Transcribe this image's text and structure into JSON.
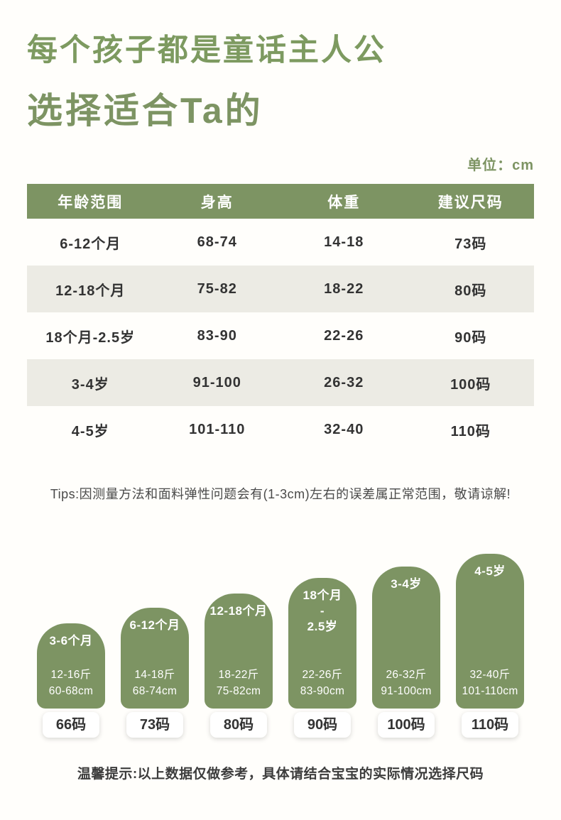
{
  "header": {
    "slogan": "每个孩子都是童话主人公",
    "subtitle": "选择适合Ta的",
    "unit": "单位：cm"
  },
  "table": {
    "headers": [
      "年龄范围",
      "身高",
      "体重",
      "建议尺码"
    ],
    "rows": [
      [
        "6-12个月",
        "68-74",
        "14-18",
        "73码"
      ],
      [
        "12-18个月",
        "75-82",
        "18-22",
        "80码"
      ],
      [
        "18个月-2.5岁",
        "83-90",
        "22-26",
        "90码"
      ],
      [
        "3-4岁",
        "91-100",
        "26-32",
        "100码"
      ],
      [
        "4-5岁",
        "101-110",
        "32-40",
        "110码"
      ]
    ]
  },
  "tips": "Tips:因测量方法和面料弹性问题会有(1-3cm)左右的误差属正常范围，敬请谅解!",
  "chart_data": {
    "type": "bar",
    "title": "",
    "categories": [
      "3-6个月",
      "6-12个月",
      "12-18个月",
      "18个月-2.5岁",
      "3-4岁",
      "4-5岁"
    ],
    "series": [
      {
        "name": "体重(斤)",
        "values": [
          "12-16",
          "14-18",
          "18-22",
          "22-26",
          "26-32",
          "32-40"
        ]
      },
      {
        "name": "身高(cm)",
        "values": [
          "60-68",
          "68-74",
          "75-82",
          "83-90",
          "91-100",
          "101-110"
        ]
      },
      {
        "name": "尺码",
        "values": [
          "66码",
          "73码",
          "80码",
          "90码",
          "100码",
          "110码"
        ]
      }
    ],
    "legend": false,
    "grid": false,
    "bars": [
      {
        "age_display": "3-6个月",
        "weight": "12-16斤",
        "height": "60-68cm",
        "size": "66码"
      },
      {
        "age_display": "6-12个月",
        "weight": "14-18斤",
        "height": "68-74cm",
        "size": "73码"
      },
      {
        "age_display": "12-18个月",
        "weight": "18-22斤",
        "height": "75-82cm",
        "size": "80码"
      },
      {
        "age_display": "18个月\n-\n2.5岁",
        "weight": "22-26斤",
        "height": "83-90cm",
        "size": "90码"
      },
      {
        "age_display": "3-4岁",
        "weight": "26-32斤",
        "height": "91-100cm",
        "size": "100码"
      },
      {
        "age_display": "4-5岁",
        "weight": "32-40斤",
        "height": "101-110cm",
        "size": "110码"
      }
    ]
  },
  "footer_note": "温馨提示:以上数据仅做参考，具体请结合宝宝的实际情况选择尺码",
  "colors": {
    "accent_green": "#7d9463",
    "row_alt": "#ecebe4",
    "text_dark": "#333333"
  }
}
